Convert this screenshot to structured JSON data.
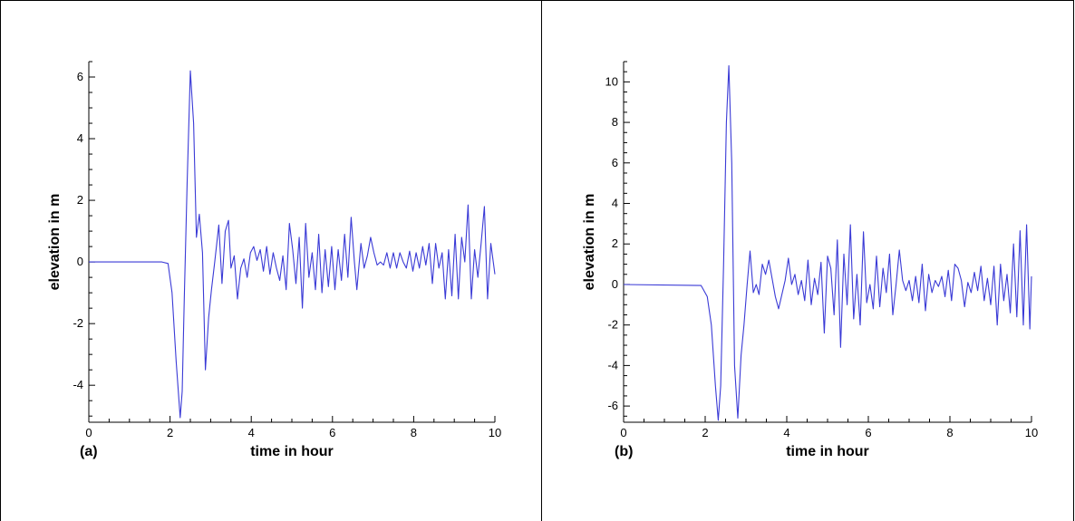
{
  "chart_data": [
    {
      "type": "line",
      "panel_label": "(a)",
      "xlabel": "time in hour",
      "ylabel": "elevation in m",
      "xlim": [
        0,
        10
      ],
      "ylim": [
        -5.2,
        6.5
      ],
      "xticks": [
        "0",
        "2",
        "4",
        "6",
        "8",
        "10"
      ],
      "yticks": [
        "-4",
        "-2",
        "0",
        "2",
        "4",
        "6"
      ],
      "grid": false,
      "series": [
        {
          "color": "#3a3ad6",
          "x": [
            0,
            1.8,
            1.95,
            2.05,
            2.15,
            2.25,
            2.3,
            2.35,
            2.42,
            2.5,
            2.58,
            2.65,
            2.72,
            2.8,
            2.87,
            2.95,
            3.02,
            3.1,
            3.2,
            3.28,
            3.36,
            3.44,
            3.5,
            3.58,
            3.66,
            3.74,
            3.82,
            3.9,
            3.98,
            4.06,
            4.14,
            4.22,
            4.3,
            4.38,
            4.46,
            4.54,
            4.62,
            4.7,
            4.78,
            4.86,
            4.94,
            5.02,
            5.1,
            5.18,
            5.26,
            5.34,
            5.42,
            5.5,
            5.58,
            5.66,
            5.74,
            5.82,
            5.9,
            5.98,
            6.06,
            6.14,
            6.22,
            6.3,
            6.38,
            6.46,
            6.54,
            6.6,
            6.7,
            6.78,
            6.86,
            6.94,
            7.02,
            7.1,
            7.18,
            7.26,
            7.34,
            7.42,
            7.5,
            7.58,
            7.66,
            7.74,
            7.82,
            7.9,
            7.98,
            8.06,
            8.14,
            8.22,
            8.3,
            8.38,
            8.46,
            8.54,
            8.62,
            8.7,
            8.78,
            8.86,
            8.94,
            9.02,
            9.1,
            9.18,
            9.26,
            9.34,
            9.42,
            9.5,
            9.58,
            9.66,
            9.74,
            9.82,
            9.9,
            10.0
          ],
          "y": [
            0,
            0,
            -0.05,
            -1.0,
            -3.2,
            -5.05,
            -4.2,
            -1.2,
            2.5,
            6.2,
            4.5,
            0.8,
            1.55,
            0.3,
            -3.5,
            -1.8,
            -0.9,
            0.0,
            1.2,
            -0.7,
            1.0,
            1.35,
            -0.2,
            0.2,
            -1.2,
            -0.2,
            0.1,
            -0.5,
            0.3,
            0.5,
            0.05,
            0.4,
            -0.3,
            0.5,
            -0.4,
            0.3,
            -0.2,
            -0.6,
            0.2,
            -0.9,
            1.25,
            0.4,
            -0.7,
            0.8,
            -1.5,
            1.25,
            -0.5,
            0.3,
            -0.9,
            0.9,
            -1.0,
            0.4,
            -0.8,
            0.5,
            -0.9,
            0.4,
            -0.6,
            0.9,
            -0.5,
            1.45,
            0.0,
            -0.9,
            0.6,
            -0.2,
            0.2,
            0.8,
            0.3,
            -0.1,
            0.0,
            -0.1,
            0.3,
            -0.2,
            0.3,
            -0.2,
            0.3,
            0.0,
            -0.2,
            0.35,
            -0.3,
            0.3,
            -0.2,
            0.5,
            -0.1,
            0.6,
            -0.7,
            0.6,
            -0.2,
            0.3,
            -1.2,
            0.4,
            -1.1,
            0.9,
            -1.2,
            0.8,
            0.0,
            1.85,
            -1.2,
            0.4,
            -0.5,
            0.6,
            1.8,
            -1.2,
            0.6,
            -0.4
          ]
        }
      ]
    },
    {
      "type": "line",
      "panel_label": "(b)",
      "xlabel": "time in hour",
      "ylabel": "elevation in m",
      "xlim": [
        0,
        10
      ],
      "ylim": [
        -6.8,
        11.0
      ],
      "xticks": [
        "0",
        "2",
        "4",
        "6",
        "8",
        "10"
      ],
      "yticks": [
        "-6",
        "-4",
        "-2",
        "0",
        "2",
        "4",
        "6",
        "8",
        "10"
      ],
      "grid": false,
      "series": [
        {
          "color": "#3a3ad6",
          "x": [
            0,
            1.9,
            2.05,
            2.15,
            2.25,
            2.32,
            2.38,
            2.45,
            2.52,
            2.58,
            2.65,
            2.72,
            2.8,
            2.88,
            2.95,
            3.03,
            3.1,
            3.18,
            3.25,
            3.32,
            3.4,
            3.48,
            3.56,
            3.64,
            3.72,
            3.8,
            3.88,
            3.96,
            4.04,
            4.12,
            4.2,
            4.28,
            4.36,
            4.44,
            4.52,
            4.6,
            4.68,
            4.76,
            4.84,
            4.92,
            5.0,
            5.08,
            5.16,
            5.24,
            5.32,
            5.4,
            5.48,
            5.56,
            5.64,
            5.72,
            5.8,
            5.88,
            5.96,
            6.04,
            6.12,
            6.2,
            6.28,
            6.36,
            6.44,
            6.52,
            6.6,
            6.68,
            6.76,
            6.84,
            6.92,
            7.0,
            7.08,
            7.16,
            7.24,
            7.32,
            7.4,
            7.48,
            7.56,
            7.64,
            7.72,
            7.8,
            7.88,
            7.96,
            8.04,
            8.12,
            8.2,
            8.28,
            8.36,
            8.44,
            8.52,
            8.6,
            8.68,
            8.76,
            8.84,
            8.92,
            9.0,
            9.08,
            9.16,
            9.24,
            9.32,
            9.4,
            9.48,
            9.56,
            9.64,
            9.72,
            9.8,
            9.88,
            9.96,
            10.0
          ],
          "y": [
            0,
            -0.05,
            -0.6,
            -2.0,
            -5.0,
            -6.7,
            -5.0,
            1.0,
            8.0,
            10.8,
            6.0,
            -4.0,
            -6.6,
            -3.5,
            -2.0,
            0.0,
            1.65,
            -0.4,
            0.0,
            -0.5,
            1.0,
            0.5,
            1.2,
            0.3,
            -0.6,
            -1.2,
            -0.5,
            0.2,
            1.3,
            0.0,
            0.5,
            -0.5,
            0.2,
            -0.8,
            1.2,
            -1.0,
            0.3,
            -0.5,
            1.1,
            -2.4,
            1.4,
            0.8,
            -1.5,
            2.2,
            -3.1,
            1.5,
            -1.0,
            2.95,
            -1.7,
            0.5,
            -2.0,
            2.6,
            -0.9,
            0.0,
            -1.2,
            1.4,
            -1.1,
            0.8,
            -0.4,
            1.5,
            -1.5,
            0.0,
            1.7,
            0.2,
            -0.3,
            0.2,
            -0.8,
            0.4,
            -0.9,
            1.0,
            -1.3,
            0.5,
            -0.4,
            0.2,
            -0.1,
            0.4,
            -0.6,
            0.7,
            -0.8,
            1.0,
            0.8,
            0.2,
            -1.1,
            0.1,
            -0.4,
            0.6,
            -0.3,
            0.9,
            -0.8,
            0.3,
            -1.0,
            0.9,
            -2.0,
            1.0,
            -0.8,
            0.5,
            -1.4,
            2.0,
            -1.6,
            2.65,
            -2.0,
            2.95,
            -2.2,
            0.4
          ]
        }
      ]
    }
  ]
}
